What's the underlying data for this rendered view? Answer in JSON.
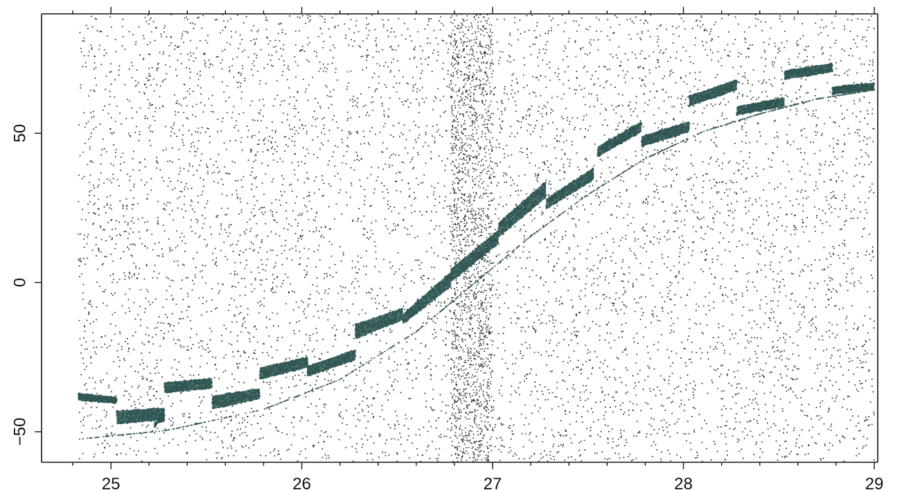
{
  "chart_data": {
    "type": "scatter",
    "title": "",
    "xlabel": "",
    "ylabel": "",
    "xlim": [
      24.8,
      29.0
    ],
    "ylim": [
      -60,
      90
    ],
    "x_ticks": [
      25,
      26,
      27,
      28,
      29
    ],
    "x_tick_labels": [
      "25",
      "26",
      "27",
      "28",
      "29"
    ],
    "y_ticks": [
      -50,
      0,
      50
    ],
    "y_tick_labels": [
      "−50",
      "0",
      "50"
    ],
    "grid": false,
    "legend": "none",
    "colors": {
      "background_dots": "#1a1a1a",
      "band": "#2f5654"
    },
    "series": [
      {
        "kind": "dense-bands",
        "segments": [
          {
            "x0": 24.83,
            "x1": 25.03,
            "y0": -37.0,
            "y1": -38.5,
            "y0b": -39.5,
            "y1b": -40.5
          },
          {
            "x0": 25.23,
            "x1": 25.28,
            "y0": -48.5,
            "y1": -42.0,
            "y0b": -47.0,
            "y1b": -46.5
          },
          {
            "x0": 25.03,
            "x1": 25.28,
            "y0": -43.0,
            "y1": -42.0,
            "y0b": -47.5,
            "y1b": -46.0
          },
          {
            "x0": 25.28,
            "x1": 25.53,
            "y0": -33.5,
            "y1": -32.0,
            "y0b": -37.0,
            "y1b": -35.5
          },
          {
            "x0": 25.53,
            "x1": 25.78,
            "y0": -38.0,
            "y1": -35.5,
            "y0b": -42.5,
            "y1b": -39.0
          },
          {
            "x0": 25.78,
            "x1": 26.03,
            "y0": -28.5,
            "y1": -25.0,
            "y0b": -32.5,
            "y1b": -28.5
          },
          {
            "x0": 26.03,
            "x1": 26.28,
            "y0": -28.0,
            "y1": -22.5,
            "y0b": -31.5,
            "y1b": -26.0
          },
          {
            "x0": 26.28,
            "x1": 26.53,
            "y0": -14.0,
            "y1": -8.5,
            "y0b": -19.0,
            "y1b": -12.5
          },
          {
            "x0": 26.53,
            "x1": 26.78,
            "y0": -10.5,
            "y1": 3.5,
            "y0b": -14.0,
            "y1b": -1.5
          },
          {
            "x0": 26.78,
            "x1": 27.03,
            "y0": 4.5,
            "y1": 17.5,
            "y0b": 0.0,
            "y1b": 13.0
          },
          {
            "x0": 27.03,
            "x1": 27.28,
            "y0": 20.0,
            "y1": 34.0,
            "y0b": 15.0,
            "y1b": 28.5
          },
          {
            "x0": 27.28,
            "x1": 27.53,
            "y0": 28.0,
            "y1": 38.5,
            "y0b": 24.5,
            "y1b": 34.5
          },
          {
            "x0": 27.55,
            "x1": 27.78,
            "y0": 45.5,
            "y1": 54.0,
            "y0b": 42.0,
            "y1b": 50.5
          },
          {
            "x0": 27.78,
            "x1": 28.03,
            "y0": 49.0,
            "y1": 54.0,
            "y0b": 45.5,
            "y1b": 50.5
          },
          {
            "x0": 28.03,
            "x1": 28.28,
            "y0": 62.5,
            "y1": 68.0,
            "y0b": 59.0,
            "y1b": 64.5
          },
          {
            "x0": 28.28,
            "x1": 28.53,
            "y0": 59.0,
            "y1": 62.0,
            "y0b": 56.0,
            "y1b": 59.0
          },
          {
            "x0": 28.53,
            "x1": 28.78,
            "y0": 71.0,
            "y1": 73.5,
            "y0b": 68.0,
            "y1b": 70.5
          },
          {
            "x0": 28.78,
            "x1": 29.0,
            "y0": 65.5,
            "y1": 67.0,
            "y0b": 63.0,
            "y1b": 64.5
          }
        ]
      },
      {
        "kind": "trend-curve",
        "points": [
          [
            24.83,
            -50
          ],
          [
            25.3,
            -47
          ],
          [
            25.8,
            -40
          ],
          [
            26.2,
            -30
          ],
          [
            26.6,
            -14
          ],
          [
            26.9,
            2
          ],
          [
            27.2,
            18
          ],
          [
            27.5,
            32
          ],
          [
            27.8,
            44
          ],
          [
            28.1,
            53
          ],
          [
            28.4,
            59
          ],
          [
            28.7,
            64
          ],
          [
            29.0,
            67
          ]
        ]
      }
    ]
  }
}
